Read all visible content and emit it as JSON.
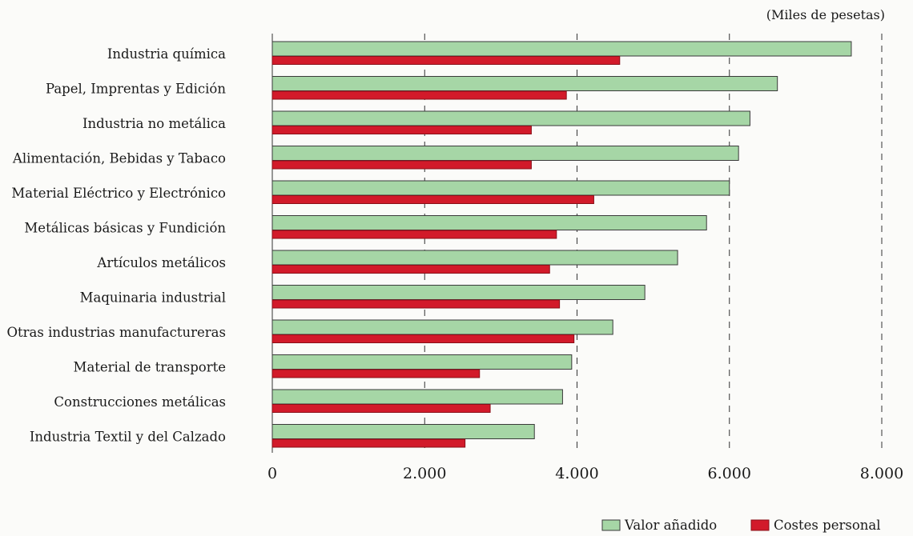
{
  "chart_data": {
    "type": "bar",
    "orientation": "horizontal",
    "unit_label": "(Miles de pesetas)",
    "categories": [
      "Industria química",
      "Papel, Imprentas y Edición",
      "Industria no metálica",
      "Alimentación, Bebidas y Tabaco",
      "Material Eléctrico y Electrónico",
      "Metálicas básicas y Fundición",
      "Artículos metálicos",
      "Maquinaria industrial",
      "Otras industrias manufactureras",
      "Material de transporte",
      "Construcciones metálicas",
      "Industria Textil y del Calzado"
    ],
    "series": [
      {
        "name": "Valor añadido",
        "color": "#a6d6a6",
        "values": [
          7600,
          6630,
          6270,
          6120,
          6000,
          5700,
          5320,
          4890,
          4470,
          3930,
          3810,
          3440
        ]
      },
      {
        "name": "Costes personal",
        "color": "#d21a2a",
        "values": [
          4560,
          3860,
          3400,
          3400,
          4220,
          3730,
          3640,
          3770,
          3960,
          2720,
          2860,
          2530
        ]
      }
    ],
    "xlim": [
      0,
      8000
    ],
    "xticks": [
      0,
      2000,
      4000,
      6000,
      8000
    ],
    "xtick_labels": [
      "0",
      "2.000",
      "4.000",
      "6.000",
      "8.000"
    ],
    "grid": "vertical dashed",
    "legend_position": "bottom-right"
  }
}
